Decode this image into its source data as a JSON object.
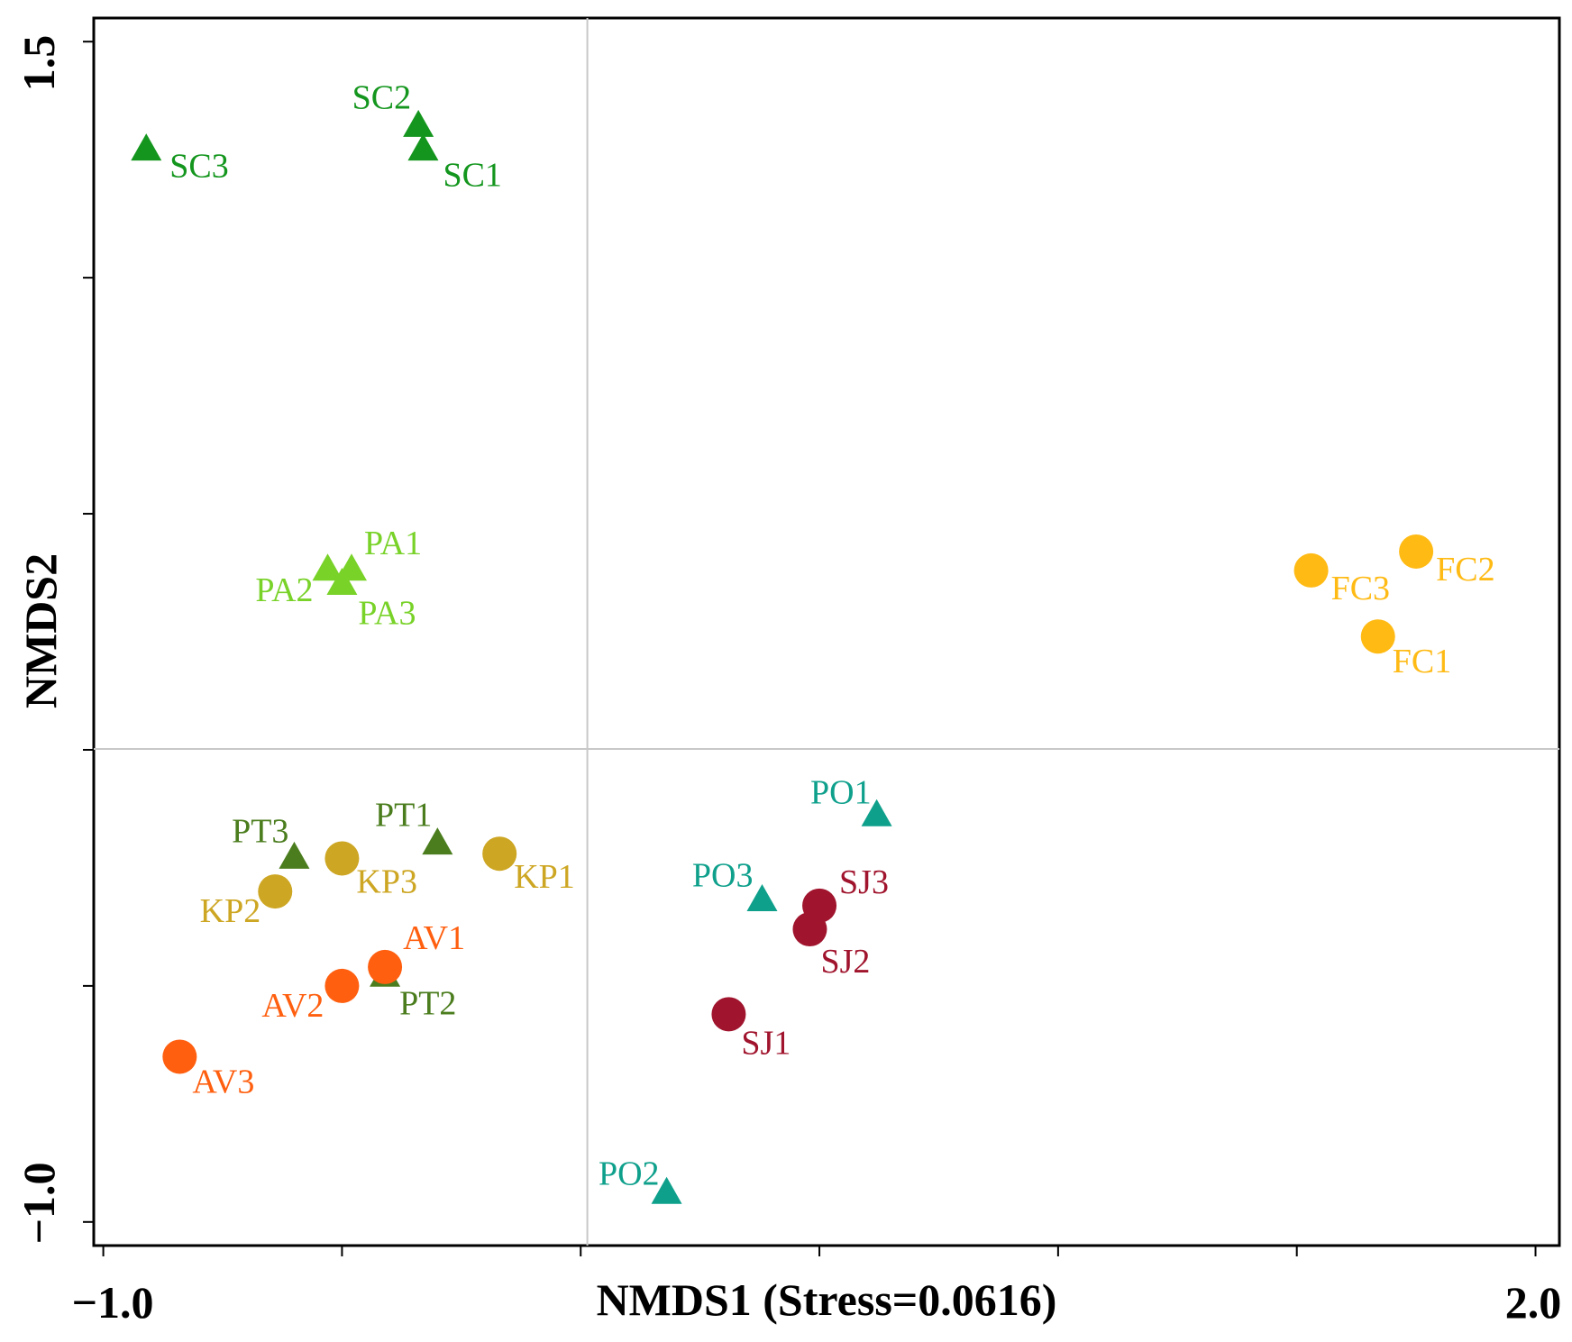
{
  "chart_data": {
    "type": "scatter",
    "title": "",
    "xlabel": "NMDS1 (Stress=0.0616)",
    "ylabel": "NMDS2",
    "stress": 0.0616,
    "xlim": [
      -1.02,
      2.05
    ],
    "ylim": [
      -1.05,
      1.55
    ],
    "x_tick_labels": [
      "−1.0",
      "2.0"
    ],
    "y_tick_labels": [
      "1.5",
      "−1.0"
    ],
    "grid": "reference lines at x=0 and y=0",
    "series": [
      {
        "name": "SC",
        "marker": "triangle",
        "color": "#14961e",
        "points": [
          {
            "label": "SC1",
            "x": -0.33,
            "y": 1.27
          },
          {
            "label": "SC2",
            "x": -0.34,
            "y": 1.32
          },
          {
            "label": "SC3",
            "x": -0.91,
            "y": 1.27
          }
        ]
      },
      {
        "name": "PA",
        "marker": "triangle",
        "color": "#78d228",
        "points": [
          {
            "label": "PA1",
            "x": -0.48,
            "y": 0.38
          },
          {
            "label": "PA2",
            "x": -0.53,
            "y": 0.38
          },
          {
            "label": "PA3",
            "x": -0.5,
            "y": 0.35
          }
        ]
      },
      {
        "name": "FC",
        "marker": "circle",
        "color": "#ffba14",
        "points": [
          {
            "label": "FC1",
            "x": 1.67,
            "y": 0.24
          },
          {
            "label": "FC2",
            "x": 1.75,
            "y": 0.42
          },
          {
            "label": "FC3",
            "x": 1.53,
            "y": 0.38
          }
        ]
      },
      {
        "name": "PT",
        "marker": "triangle",
        "color": "#4b7d1e",
        "points": [
          {
            "label": "PT1",
            "x": -0.3,
            "y": -0.2
          },
          {
            "label": "PT2",
            "x": -0.41,
            "y": -0.48
          },
          {
            "label": "PT3",
            "x": -0.6,
            "y": -0.23
          }
        ]
      },
      {
        "name": "KP",
        "marker": "circle",
        "color": "#cda623",
        "points": [
          {
            "label": "KP1",
            "x": -0.17,
            "y": -0.22
          },
          {
            "label": "KP2",
            "x": -0.64,
            "y": -0.3
          },
          {
            "label": "KP3",
            "x": -0.5,
            "y": -0.23
          }
        ]
      },
      {
        "name": "AV",
        "marker": "circle",
        "color": "#ff5f0f",
        "points": [
          {
            "label": "AV1",
            "x": -0.41,
            "y": -0.46
          },
          {
            "label": "AV2",
            "x": -0.5,
            "y": -0.5
          },
          {
            "label": "AV3",
            "x": -0.84,
            "y": -0.65
          }
        ]
      },
      {
        "name": "PO",
        "marker": "triangle",
        "color": "#0fa08c",
        "points": [
          {
            "label": "PO1",
            "x": 0.62,
            "y": -0.14
          },
          {
            "label": "PO2",
            "x": 0.18,
            "y": -0.94
          },
          {
            "label": "PO3",
            "x": 0.38,
            "y": -0.32
          }
        ]
      },
      {
        "name": "SJ",
        "marker": "circle",
        "color": "#a0142d",
        "points": [
          {
            "label": "SJ1",
            "x": 0.31,
            "y": -0.56
          },
          {
            "label": "SJ2",
            "x": 0.48,
            "y": -0.38
          },
          {
            "label": "SJ3",
            "x": 0.5,
            "y": -0.33
          }
        ]
      }
    ]
  }
}
